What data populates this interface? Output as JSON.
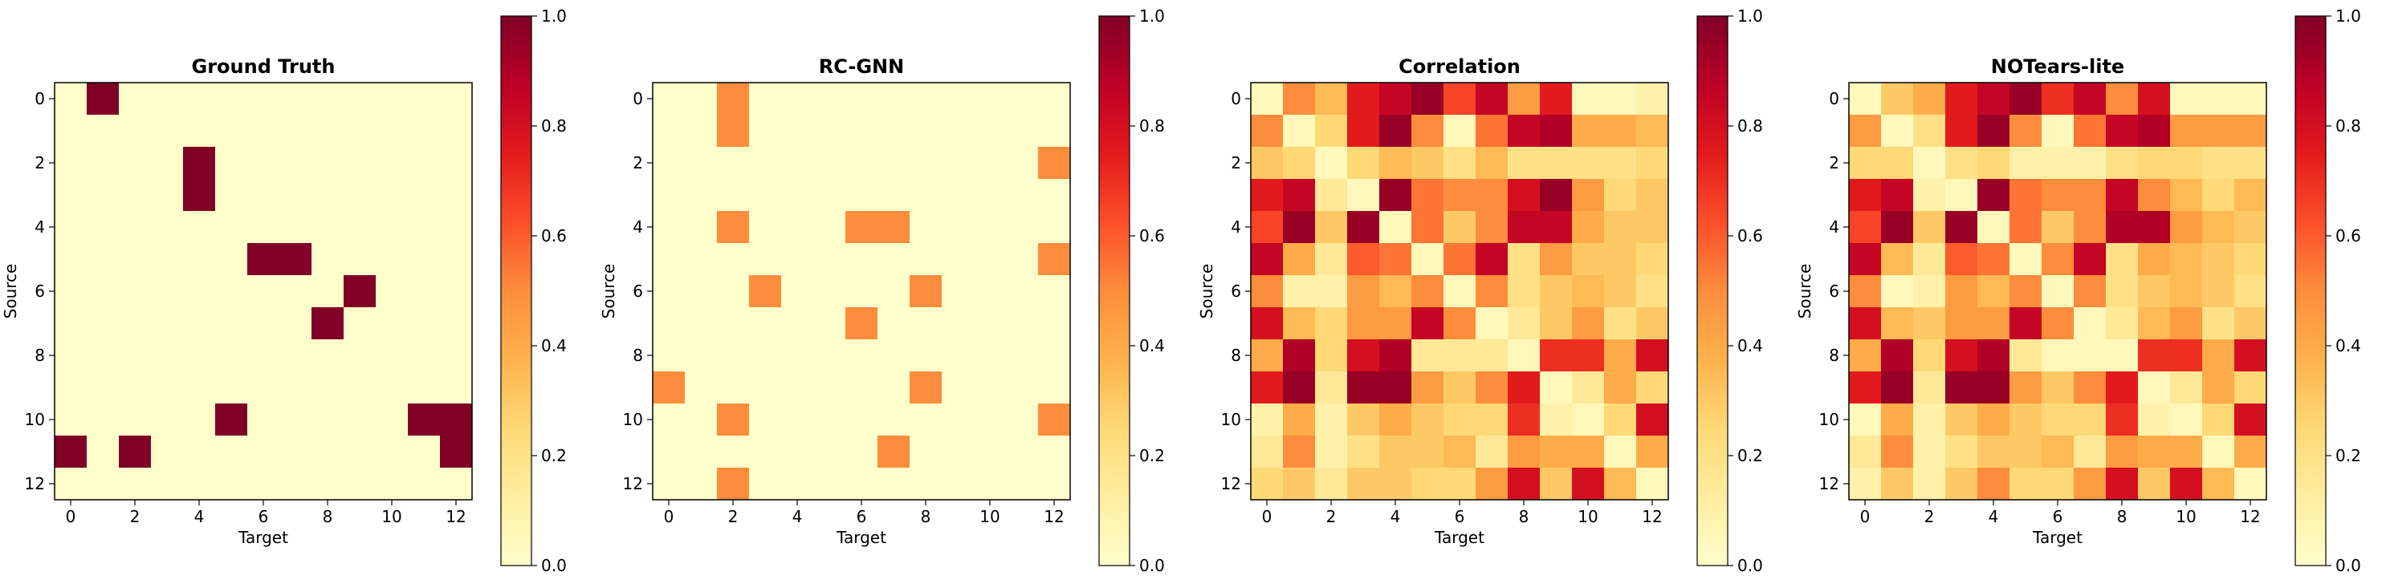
{
  "chart_data": [
    {
      "type": "heatmap",
      "title": "Ground Truth",
      "xlabel": "Target",
      "ylabel": "Source",
      "x_ticks": [
        0,
        2,
        4,
        6,
        8,
        10,
        12
      ],
      "y_ticks": [
        0,
        2,
        4,
        6,
        8,
        10,
        12
      ],
      "vmin": 0,
      "vmax": 1,
      "colorbar_ticks": [
        "0.0",
        "0.2",
        "0.4",
        "0.6",
        "0.8",
        "1.0"
      ],
      "colormap": "YlOrRd",
      "matrix": [
        [
          0,
          1,
          0,
          0,
          0,
          0,
          0,
          0,
          0,
          0,
          0,
          0,
          0
        ],
        [
          0,
          0,
          0,
          0,
          0,
          0,
          0,
          0,
          0,
          0,
          0,
          0,
          0
        ],
        [
          0,
          0,
          0,
          0,
          1,
          0,
          0,
          0,
          0,
          0,
          0,
          0,
          0
        ],
        [
          0,
          0,
          0,
          0,
          1,
          0,
          0,
          0,
          0,
          0,
          0,
          0,
          0
        ],
        [
          0,
          0,
          0,
          0,
          0,
          0,
          0,
          0,
          0,
          0,
          0,
          0,
          0
        ],
        [
          0,
          0,
          0,
          0,
          0,
          0,
          1,
          1,
          0,
          0,
          0,
          0,
          0
        ],
        [
          0,
          0,
          0,
          0,
          0,
          0,
          0,
          0,
          0,
          1,
          0,
          0,
          0
        ],
        [
          0,
          0,
          0,
          0,
          0,
          0,
          0,
          0,
          1,
          0,
          0,
          0,
          0
        ],
        [
          0,
          0,
          0,
          0,
          0,
          0,
          0,
          0,
          0,
          0,
          0,
          0,
          0
        ],
        [
          0,
          0,
          0,
          0,
          0,
          0,
          0,
          0,
          0,
          0,
          0,
          0,
          0
        ],
        [
          0,
          0,
          0,
          0,
          0,
          1,
          0,
          0,
          0,
          0,
          0,
          1,
          1
        ],
        [
          1,
          0,
          1,
          0,
          0,
          0,
          0,
          0,
          0,
          0,
          0,
          0,
          1
        ],
        [
          0,
          0,
          0,
          0,
          0,
          0,
          0,
          0,
          0,
          0,
          0,
          0,
          0
        ]
      ]
    },
    {
      "type": "heatmap",
      "title": "RC-GNN",
      "xlabel": "Target",
      "ylabel": "Source",
      "x_ticks": [
        0,
        2,
        4,
        6,
        8,
        10,
        12
      ],
      "y_ticks": [
        0,
        2,
        4,
        6,
        8,
        10,
        12
      ],
      "vmin": 0,
      "vmax": 1,
      "colorbar_ticks": [
        "0.0",
        "0.2",
        "0.4",
        "0.6",
        "0.8",
        "1.0"
      ],
      "colormap": "YlOrRd",
      "matrix": [
        [
          0,
          0,
          0.5,
          0,
          0,
          0,
          0,
          0,
          0,
          0,
          0,
          0,
          0
        ],
        [
          0,
          0,
          0.5,
          0,
          0,
          0,
          0,
          0,
          0,
          0,
          0,
          0,
          0
        ],
        [
          0,
          0,
          0,
          0,
          0,
          0,
          0,
          0,
          0,
          0,
          0,
          0,
          0.5
        ],
        [
          0,
          0,
          0,
          0,
          0,
          0,
          0,
          0,
          0,
          0,
          0,
          0,
          0
        ],
        [
          0,
          0,
          0.5,
          0,
          0,
          0,
          0.5,
          0.5,
          0,
          0,
          0,
          0,
          0
        ],
        [
          0,
          0,
          0,
          0,
          0,
          0,
          0,
          0,
          0,
          0,
          0,
          0,
          0.5
        ],
        [
          0,
          0,
          0,
          0.5,
          0,
          0,
          0,
          0,
          0.5,
          0,
          0,
          0,
          0
        ],
        [
          0,
          0,
          0,
          0,
          0,
          0,
          0.5,
          0,
          0,
          0,
          0,
          0,
          0
        ],
        [
          0,
          0,
          0,
          0,
          0,
          0,
          0,
          0,
          0,
          0,
          0,
          0,
          0
        ],
        [
          0.5,
          0,
          0,
          0,
          0,
          0,
          0,
          0,
          0.5,
          0,
          0,
          0,
          0
        ],
        [
          0,
          0,
          0.5,
          0,
          0,
          0,
          0,
          0,
          0,
          0,
          0,
          0,
          0.5
        ],
        [
          0,
          0,
          0,
          0,
          0,
          0,
          0,
          0.5,
          0,
          0,
          0,
          0,
          0
        ],
        [
          0,
          0,
          0.5,
          0,
          0,
          0,
          0,
          0,
          0,
          0,
          0,
          0,
          0
        ]
      ]
    },
    {
      "type": "heatmap",
      "title": "Correlation",
      "xlabel": "Target",
      "ylabel": "Source",
      "x_ticks": [
        0,
        2,
        4,
        6,
        8,
        10,
        12
      ],
      "y_ticks": [
        0,
        2,
        4,
        6,
        8,
        10,
        12
      ],
      "vmin": 0,
      "vmax": 1,
      "colorbar_ticks": [
        "0.0",
        "0.2",
        "0.4",
        "0.6",
        "0.8",
        "1.0"
      ],
      "colormap": "YlOrRd",
      "matrix": [
        [
          0.05,
          0.5,
          0.35,
          0.75,
          0.85,
          0.95,
          0.65,
          0.85,
          0.45,
          0.75,
          0.05,
          0.05,
          0.1
        ],
        [
          0.5,
          0.05,
          0.25,
          0.75,
          0.95,
          0.5,
          0.05,
          0.55,
          0.85,
          0.9,
          0.4,
          0.4,
          0.35
        ],
        [
          0.3,
          0.25,
          0.05,
          0.25,
          0.35,
          0.3,
          0.2,
          0.35,
          0.2,
          0.2,
          0.2,
          0.2,
          0.25
        ],
        [
          0.75,
          0.85,
          0.15,
          0.05,
          0.95,
          0.55,
          0.5,
          0.5,
          0.8,
          0.95,
          0.45,
          0.25,
          0.3
        ],
        [
          0.65,
          0.95,
          0.3,
          0.95,
          0.05,
          0.55,
          0.3,
          0.5,
          0.85,
          0.85,
          0.4,
          0.3,
          0.3
        ],
        [
          0.85,
          0.4,
          0.15,
          0.6,
          0.55,
          0.05,
          0.55,
          0.85,
          0.2,
          0.45,
          0.3,
          0.3,
          0.25
        ],
        [
          0.5,
          0.1,
          0.1,
          0.45,
          0.35,
          0.5,
          0.05,
          0.5,
          0.2,
          0.3,
          0.35,
          0.3,
          0.2
        ],
        [
          0.8,
          0.35,
          0.25,
          0.45,
          0.45,
          0.85,
          0.5,
          0.05,
          0.15,
          0.3,
          0.45,
          0.2,
          0.3
        ],
        [
          0.4,
          0.9,
          0.25,
          0.8,
          0.9,
          0.15,
          0.15,
          0.15,
          0.05,
          0.7,
          0.7,
          0.4,
          0.8
        ],
        [
          0.75,
          0.95,
          0.15,
          0.95,
          0.95,
          0.45,
          0.3,
          0.5,
          0.75,
          0.05,
          0.15,
          0.4,
          0.25
        ],
        [
          0.1,
          0.4,
          0.1,
          0.3,
          0.4,
          0.3,
          0.25,
          0.25,
          0.7,
          0.1,
          0.05,
          0.25,
          0.8
        ],
        [
          0.15,
          0.5,
          0.1,
          0.2,
          0.3,
          0.3,
          0.35,
          0.15,
          0.45,
          0.4,
          0.4,
          0.05,
          0.4
        ],
        [
          0.25,
          0.3,
          0.15,
          0.3,
          0.3,
          0.25,
          0.25,
          0.45,
          0.8,
          0.3,
          0.8,
          0.35,
          0.05
        ]
      ]
    },
    {
      "type": "heatmap",
      "title": "NOTears-lite",
      "xlabel": "Target",
      "ylabel": "Source",
      "x_ticks": [
        0,
        2,
        4,
        6,
        8,
        10,
        12
      ],
      "y_ticks": [
        0,
        2,
        4,
        6,
        8,
        10,
        12
      ],
      "vmin": 0,
      "vmax": 1,
      "colorbar_ticks": [
        "0.0",
        "0.2",
        "0.4",
        "0.6",
        "0.8",
        "1.0"
      ],
      "colormap": "YlOrRd",
      "matrix": [
        [
          0.05,
          0.3,
          0.4,
          0.75,
          0.85,
          0.95,
          0.7,
          0.85,
          0.5,
          0.8,
          0.05,
          0.05,
          0.05
        ],
        [
          0.45,
          0.05,
          0.2,
          0.75,
          0.95,
          0.5,
          0.05,
          0.55,
          0.85,
          0.9,
          0.45,
          0.45,
          0.45
        ],
        [
          0.25,
          0.25,
          0.05,
          0.2,
          0.25,
          0.1,
          0.1,
          0.1,
          0.2,
          0.25,
          0.25,
          0.2,
          0.2
        ],
        [
          0.75,
          0.85,
          0.1,
          0.05,
          0.95,
          0.55,
          0.5,
          0.5,
          0.85,
          0.5,
          0.35,
          0.25,
          0.35
        ],
        [
          0.65,
          0.95,
          0.3,
          0.95,
          0.05,
          0.55,
          0.3,
          0.5,
          0.9,
          0.9,
          0.45,
          0.35,
          0.3
        ],
        [
          0.85,
          0.35,
          0.15,
          0.6,
          0.55,
          0.05,
          0.5,
          0.85,
          0.2,
          0.4,
          0.35,
          0.3,
          0.25
        ],
        [
          0.5,
          0.05,
          0.1,
          0.45,
          0.35,
          0.5,
          0.05,
          0.5,
          0.2,
          0.3,
          0.35,
          0.3,
          0.2
        ],
        [
          0.8,
          0.35,
          0.3,
          0.45,
          0.45,
          0.85,
          0.5,
          0.05,
          0.15,
          0.35,
          0.45,
          0.2,
          0.3
        ],
        [
          0.4,
          0.9,
          0.25,
          0.8,
          0.9,
          0.15,
          0.05,
          0.05,
          0.05,
          0.7,
          0.7,
          0.4,
          0.8
        ],
        [
          0.75,
          0.95,
          0.15,
          0.95,
          0.95,
          0.45,
          0.3,
          0.5,
          0.75,
          0.05,
          0.15,
          0.4,
          0.25
        ],
        [
          0.05,
          0.4,
          0.1,
          0.3,
          0.4,
          0.3,
          0.25,
          0.25,
          0.7,
          0.1,
          0.05,
          0.25,
          0.8
        ],
        [
          0.15,
          0.5,
          0.1,
          0.2,
          0.3,
          0.3,
          0.35,
          0.15,
          0.45,
          0.4,
          0.4,
          0.05,
          0.4
        ],
        [
          0.1,
          0.3,
          0.1,
          0.3,
          0.5,
          0.25,
          0.25,
          0.45,
          0.8,
          0.3,
          0.8,
          0.35,
          0.05
        ]
      ]
    }
  ]
}
